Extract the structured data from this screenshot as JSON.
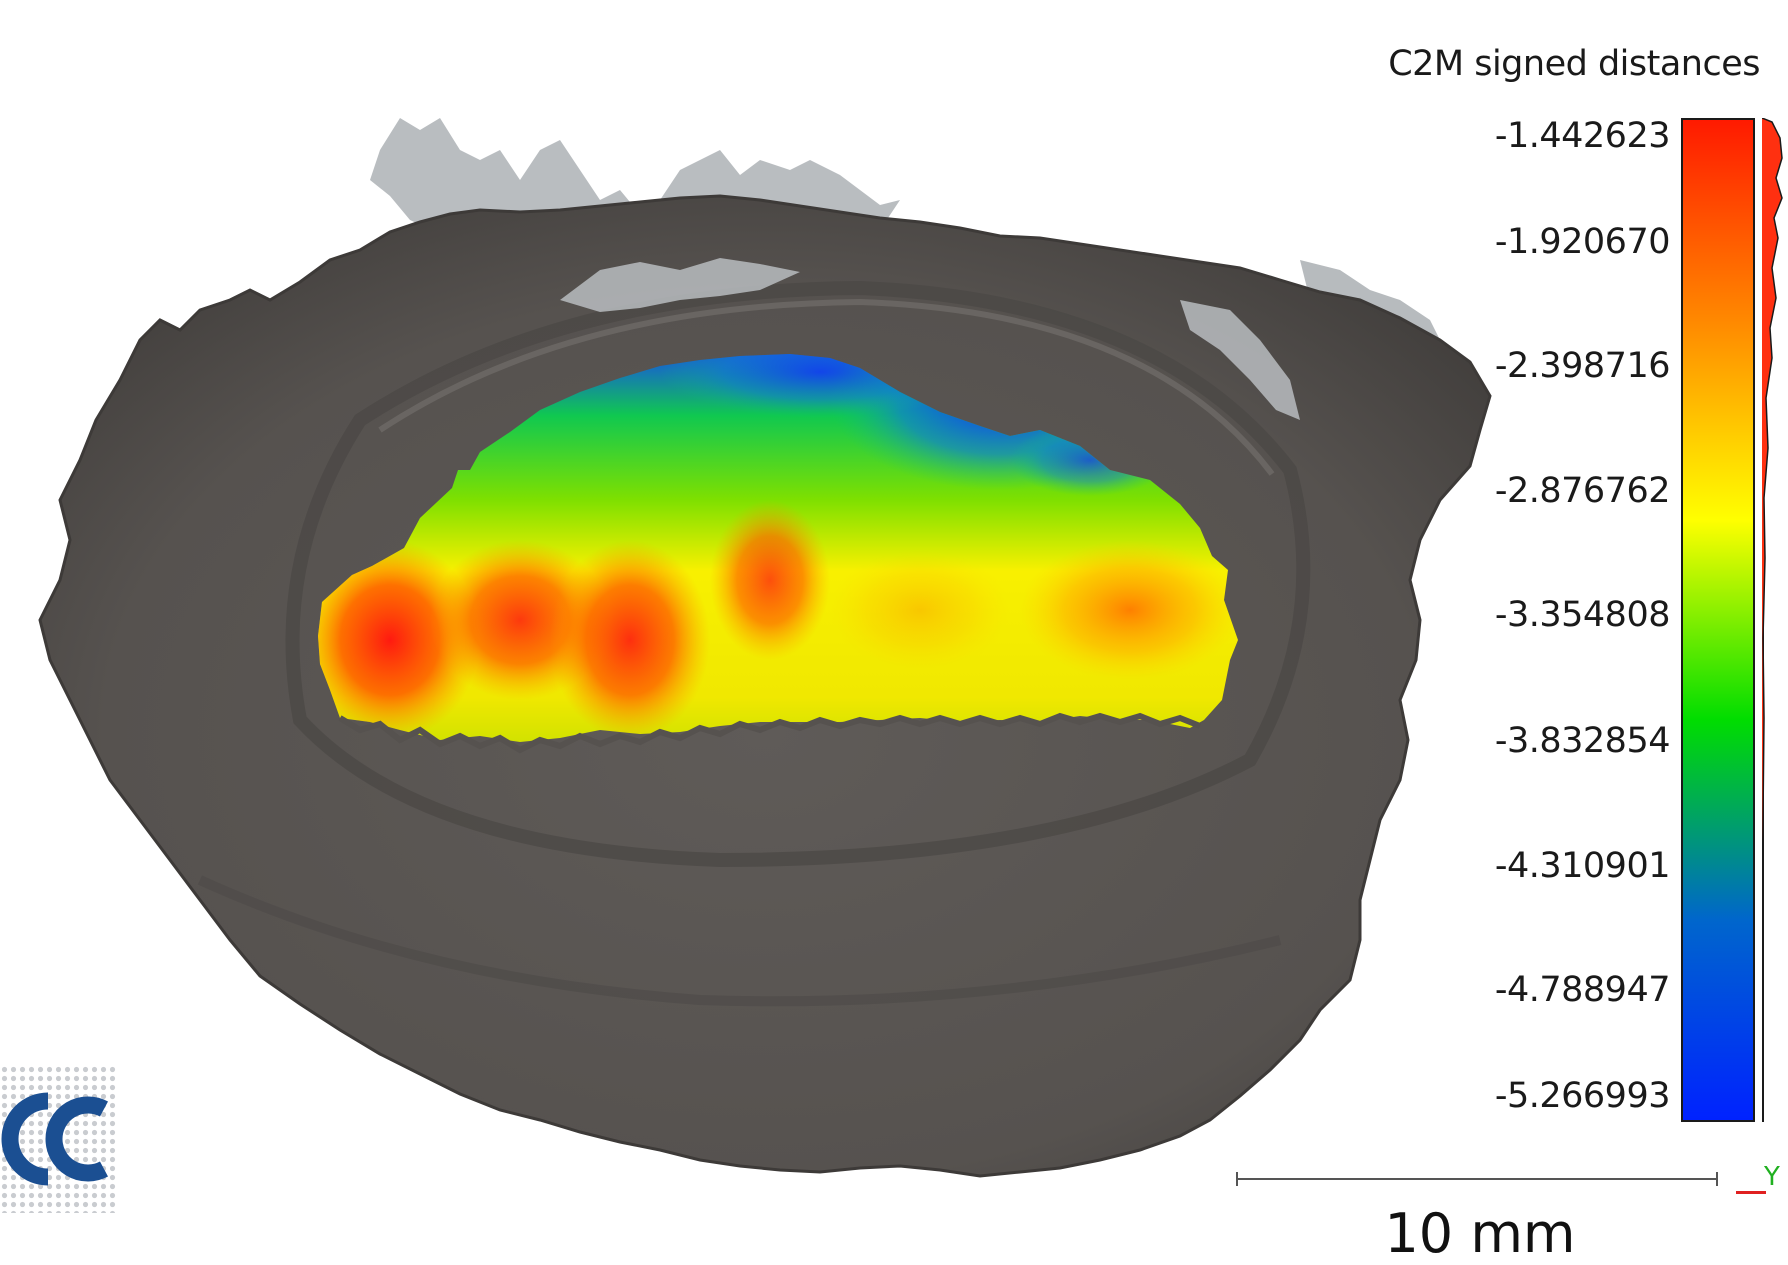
{
  "viewer": {
    "scalar_field": {
      "title": "C2M signed distances",
      "ticks": [
        "-1.442623",
        "-1.920670",
        "-2.398716",
        "-2.876762",
        "-3.354808",
        "-3.832854",
        "-4.310901",
        "-4.788947",
        "-5.266993"
      ],
      "colors": [
        "#ff1a00",
        "#ff8800",
        "#ffff00",
        "#00dd00",
        "#0066cc",
        "#0022ff"
      ]
    },
    "scale_bar": {
      "label": "10 mm"
    },
    "axis_gizmo": {
      "y_label": "Y"
    },
    "mesh_color": "#605c59",
    "mesh_highlight_color": "#b8bcbf",
    "logo_icon": "cloudcompare-logo-icon"
  }
}
